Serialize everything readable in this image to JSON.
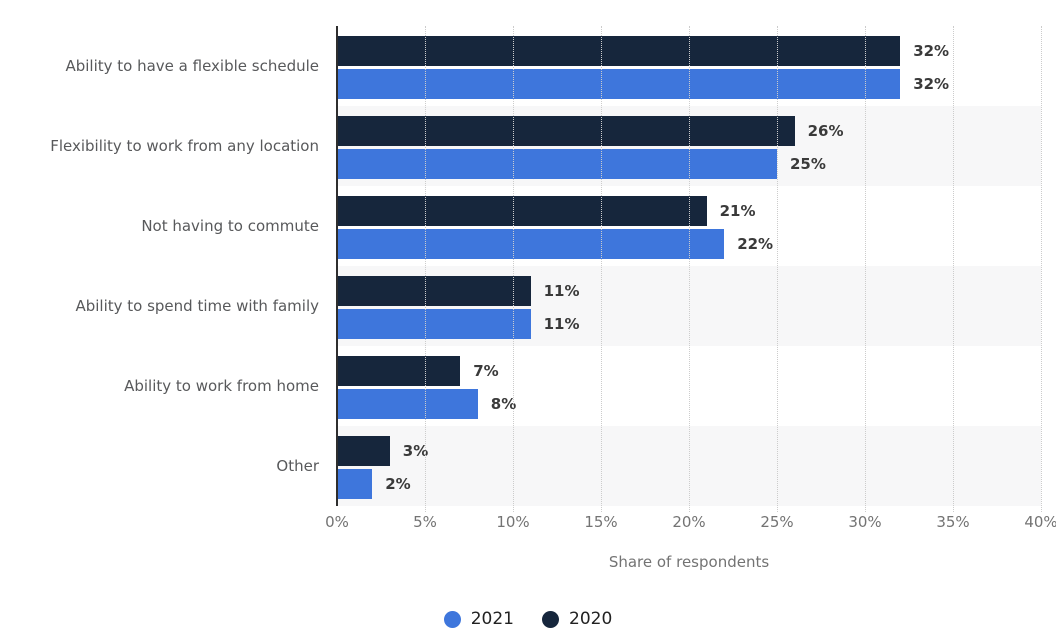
{
  "chart_data": {
    "type": "bar",
    "orientation": "horizontal",
    "categories": [
      "Ability to have a flexible schedule",
      "Flexibility to work from any location",
      "Not having to commute",
      "Ability to spend time with family",
      "Ability to work from home",
      "Other"
    ],
    "series": [
      {
        "name": "2021",
        "color": "#3E76DC",
        "values": [
          32,
          25,
          22,
          11,
          8,
          2
        ]
      },
      {
        "name": "2020",
        "color": "#16263C",
        "values": [
          32,
          26,
          21,
          11,
          7,
          3
        ]
      }
    ],
    "row_series_order": [
      "2020",
      "2021"
    ],
    "value_suffix": "%",
    "title": "",
    "xlabel": "Share of respondents",
    "ylabel": "",
    "xlim": [
      0,
      40
    ],
    "xticks": [
      "0%",
      "5%",
      "10%",
      "15%",
      "20%",
      "25%",
      "30%",
      "35%",
      "40%"
    ],
    "grid": "vertical-dotted",
    "legend_position": "bottom",
    "row_stripes": [
      "#ffffff",
      "#f7f7f8"
    ]
  },
  "colors": {
    "axis_line": "#2e2e2e",
    "gridline": "#cccccc",
    "category_label": "#58595b",
    "tick_label": "#737373",
    "value_label": "#3a3a3a",
    "legend_text": "#222222",
    "stripe": "#f7f7f8"
  }
}
